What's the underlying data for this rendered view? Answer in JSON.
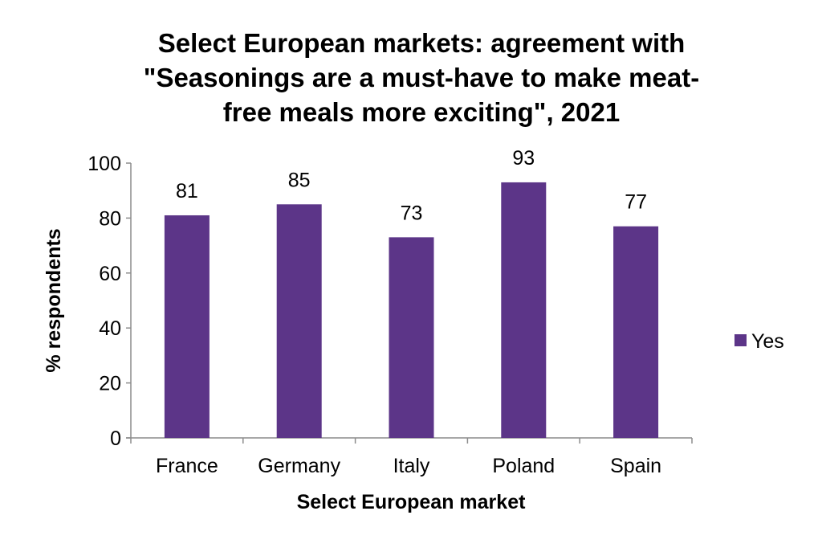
{
  "chart_data": {
    "type": "bar",
    "title_lines": [
      "Select European markets: agreement with",
      "\"Seasonings are a must-have to make meat-",
      "free meals more exciting\", 2021"
    ],
    "title": "Select European markets: agreement with \"Seasonings are a must-have to make meat-free meals more exciting\", 2021",
    "categories": [
      "France",
      "Germany",
      "Italy",
      "Poland",
      "Spain"
    ],
    "series": [
      {
        "name": "Yes",
        "values": [
          81,
          85,
          73,
          93,
          77
        ],
        "color": "#5c3588"
      }
    ],
    "xlabel": "Select European market",
    "ylabel": "% respondents",
    "ylim": [
      0,
      100
    ],
    "yticks": [
      0,
      20,
      40,
      60,
      80,
      100
    ],
    "grid": false,
    "legend_position": "right",
    "data_labels": true
  }
}
